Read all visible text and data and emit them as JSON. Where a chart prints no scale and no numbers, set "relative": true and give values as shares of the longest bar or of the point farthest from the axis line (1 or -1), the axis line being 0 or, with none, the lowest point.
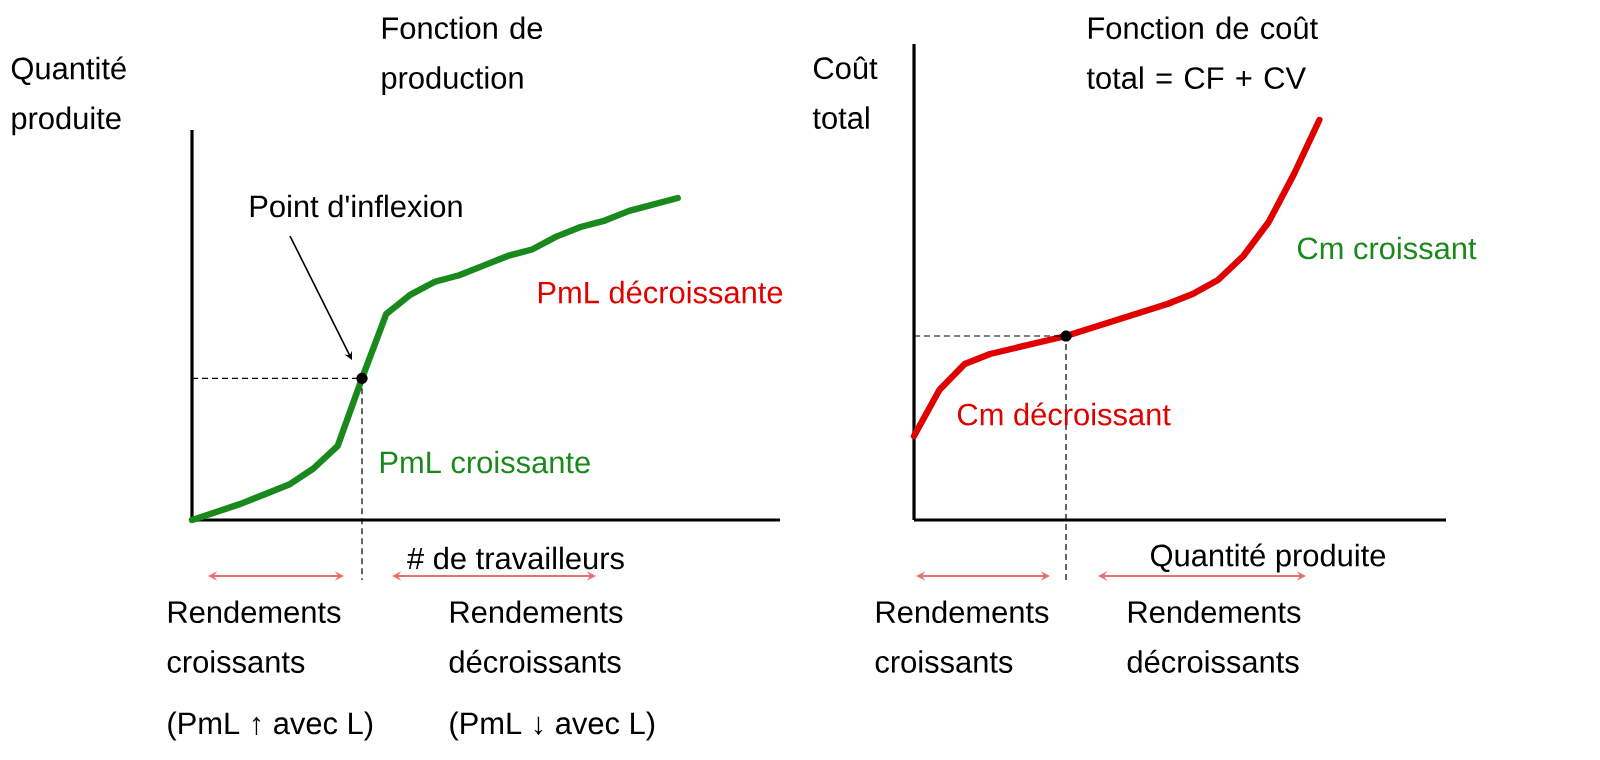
{
  "chart_data": [
    {
      "type": "line",
      "title": "Fonction de production",
      "xlabel": "# de travailleurs",
      "ylabel": "Quantité produite",
      "relative": true,
      "categories": [
        null,
        null,
        null,
        null,
        null,
        null,
        null,
        null,
        null,
        null,
        null,
        null,
        null,
        null,
        null,
        null,
        null,
        null,
        null,
        null,
        null
      ],
      "series": [
        {
          "type": "line",
          "color": "#18891a",
          "values": [
            0,
            0.025,
            0.05,
            0.08,
            0.11,
            0.16,
            0.23,
            0.44,
            0.64,
            0.7,
            0.74,
            0.76,
            0.79,
            0.82,
            0.84,
            0.88,
            0.91,
            0.93,
            0.96,
            0.98,
            1.0
          ]
        }
      ],
      "annotations": [
        "Point d'inflexion",
        "PmL décroissante",
        "PmL croissante",
        "Rendements croissants",
        "(PmL ↑ avec L)",
        "Rendements décroissants",
        "(PmL ↓ avec L)"
      ]
    },
    {
      "type": "line",
      "title": "Fonction de coût total = CF + CV",
      "xlabel": "Quantité produite",
      "ylabel": "Coût total",
      "relative": true,
      "categories": [
        null,
        null,
        null,
        null,
        null,
        null,
        null,
        null,
        null,
        null,
        null,
        null,
        null,
        null,
        null,
        null,
        null
      ],
      "series": [
        {
          "type": "line",
          "color": "#e00000",
          "values": [
            0.21,
            0.325,
            0.39,
            0.415,
            0.43,
            0.445,
            0.46,
            0.48,
            0.5,
            0.52,
            0.54,
            0.565,
            0.6,
            0.66,
            0.745,
            0.865,
            1.0
          ]
        }
      ],
      "annotations": [
        "Cm croissant",
        "Cm décroissant",
        "Rendements croissants",
        "Rendements décroissants"
      ]
    }
  ]
}
